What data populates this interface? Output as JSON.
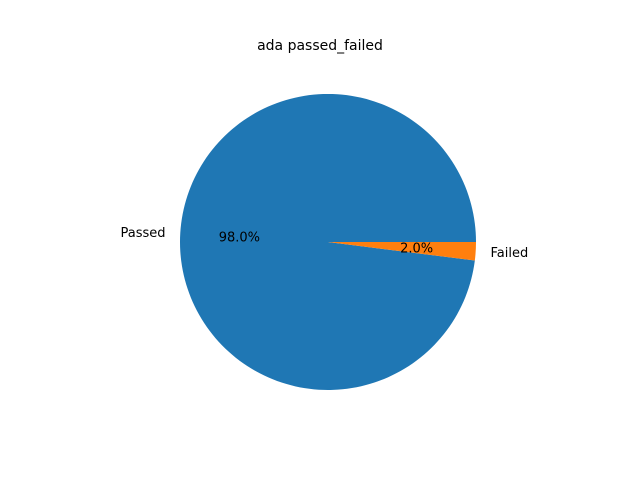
{
  "chart_data": {
    "type": "pie",
    "title": "ada passed_failed",
    "slices": [
      {
        "label": "Passed",
        "value": 98.0,
        "pct_label": "98.0%",
        "color": "#1f77b4"
      },
      {
        "label": "Failed",
        "value": 2.0,
        "pct_label": "2.0%",
        "color": "#ff7f0e"
      }
    ],
    "start_angle_deg": 0,
    "direction": "counterclockwise",
    "legend": "none"
  }
}
